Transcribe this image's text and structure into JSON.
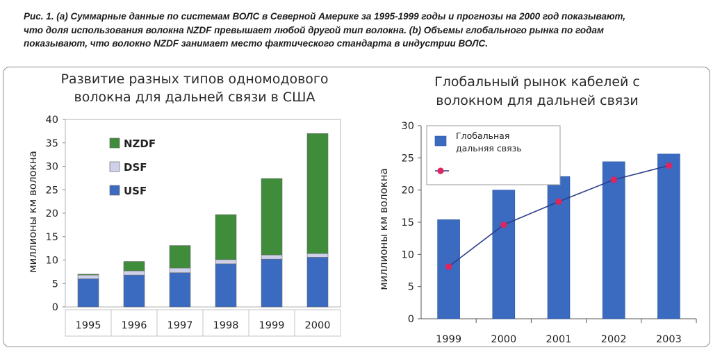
{
  "caption": {
    "line1": "Рис. 1. (a) Суммарные данные по системам ВОЛС в Северной Америке за 1995-1999 годы и прогнозы на 2000 год показывают,",
    "line2": "что доля использования волокна NZDF превышает любой другой тип волокна.   (b) Объемы глобального рынка по годам",
    "line3": "показывают, что волокно NZDF занимает место фактического стандарта в индустрии ВОЛС."
  },
  "chart_data": [
    {
      "type": "bar",
      "stacked": true,
      "title_line1": "Развитие разных типов одномодового",
      "title_line2": "волокна для дальней связи в США",
      "ylabel": "миллионы  км волокна",
      "xlabel": "",
      "categories": [
        "1995",
        "1996",
        "1997",
        "1998",
        "1999",
        "2000"
      ],
      "ylim": [
        0,
        40
      ],
      "yticks": [
        0,
        5,
        10,
        15,
        20,
        25,
        30,
        35,
        40
      ],
      "series": [
        {
          "name": "USF",
          "color": "#3a6bc0",
          "values": [
            6.0,
            6.8,
            7.3,
            9.2,
            10.2,
            10.6
          ]
        },
        {
          "name": "DSF",
          "color": "#cfd0ea",
          "values": [
            0.8,
            0.9,
            1.0,
            0.9,
            0.9,
            0.8
          ]
        },
        {
          "name": "NZDF",
          "color": "#3f8c3a",
          "values": [
            0.2,
            2.0,
            4.8,
            9.6,
            16.3,
            25.6
          ]
        }
      ],
      "legend": "inside-left",
      "grid": false
    },
    {
      "type": "bar",
      "title_line1": "Глобальный рынок кабелей с",
      "title_line2": "волокном для дальней связи",
      "ylabel": "миллионы  км волокна",
      "xlabel": "",
      "categories": [
        "1999",
        "2000",
        "2001",
        "2002",
        "2003"
      ],
      "ylim": [
        0,
        30
      ],
      "yticks": [
        0,
        5,
        10,
        15,
        20,
        25,
        30
      ],
      "series": [
        {
          "name": "Глобальная дальняя связь",
          "kind": "bar",
          "color": "#3a6bc0",
          "values": [
            15.4,
            20.0,
            22.1,
            24.4,
            25.6
          ]
        },
        {
          "name": "",
          "kind": "line",
          "color": "#2c3f8c",
          "marker_color": "#e0245e",
          "values": [
            8.1,
            14.6,
            18.2,
            21.6,
            23.8
          ]
        }
      ],
      "legend": "top-left",
      "grid": false
    }
  ]
}
